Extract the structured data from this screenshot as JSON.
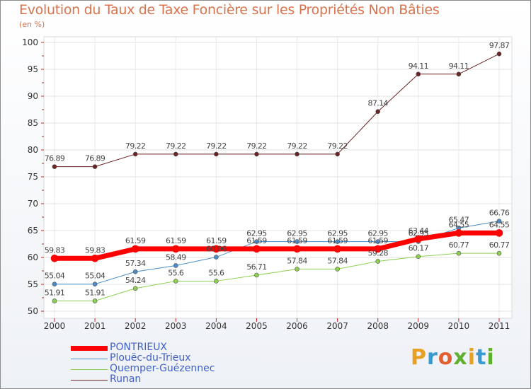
{
  "title": "Evolution du Taux de Taxe Foncière sur les Propriétés Non Bâties",
  "unit_label": "(en %)",
  "logo": {
    "text": "Proxiti",
    "colors": [
      "#e8a020",
      "#3a9ad0",
      "#e06030",
      "#60b030",
      "#e8a020",
      "#3a9ad0",
      "#60b030"
    ]
  },
  "chart_data": {
    "type": "line",
    "title": "Evolution du Taux de Taxe Foncière sur les Propriétés Non Bâties",
    "ylabel": "(en %)",
    "xlabel": "",
    "x": [
      "2000",
      "2001",
      "2002",
      "2003",
      "2004",
      "2005",
      "2006",
      "2007",
      "2008",
      "2009",
      "2010",
      "2011"
    ],
    "ylim": [
      50,
      100
    ],
    "yticks": [
      "50",
      "55",
      "60",
      "65",
      "70",
      "75",
      "80",
      "85",
      "90",
      "95",
      "100"
    ],
    "grid": true,
    "legend_position": "bottom-left",
    "series": [
      {
        "name": "PONTRIEUX",
        "color": "#ff0000",
        "line_width": 7,
        "values": [
          59.83,
          59.83,
          61.59,
          61.59,
          61.59,
          61.59,
          61.59,
          61.59,
          61.59,
          63.44,
          64.55,
          64.55
        ],
        "labels": [
          "59.83",
          "59.83",
          "61.59",
          "61.59",
          "61.59",
          "61.59",
          "61.59",
          "61.59",
          "61.59",
          "63.44",
          "64.55",
          "64.55"
        ]
      },
      {
        "name": "Plouëc-du-Trieux",
        "color": "#4a8cc8",
        "line_width": 1,
        "values": [
          55.04,
          55.04,
          57.34,
          58.49,
          60.06,
          62.95,
          62.95,
          62.95,
          62.95,
          62.95,
          65.47,
          66.76
        ],
        "labels": [
          "55.04",
          "55.04",
          "57.34",
          "58.49",
          "60.06",
          "62.95",
          "62.95",
          "62.95",
          "62.95",
          "62.95",
          "65.47",
          "66.76"
        ]
      },
      {
        "name": "Quemper-Guézennec",
        "color": "#8cd050",
        "line_width": 1,
        "values": [
          51.91,
          51.91,
          54.24,
          55.6,
          55.6,
          56.71,
          57.84,
          57.84,
          59.28,
          60.17,
          60.77,
          60.77
        ],
        "labels": [
          "51.91",
          "51.91",
          "54.24",
          "55.6",
          "55.6",
          "56.71",
          "57.84",
          "57.84",
          "59.28",
          "60.17",
          "60.77",
          "60.77"
        ]
      },
      {
        "name": "Runan",
        "color": "#6b2323",
        "line_width": 1,
        "values": [
          76.89,
          76.89,
          79.22,
          79.22,
          79.22,
          79.22,
          79.22,
          79.22,
          87.14,
          94.11,
          94.11,
          97.87
        ],
        "labels": [
          "76.89",
          "76.89",
          "79.22",
          "79.22",
          "79.22",
          "79.22",
          "79.22",
          "79.22",
          "87.14",
          "94.11",
          "94.11",
          "97.87"
        ]
      }
    ]
  }
}
